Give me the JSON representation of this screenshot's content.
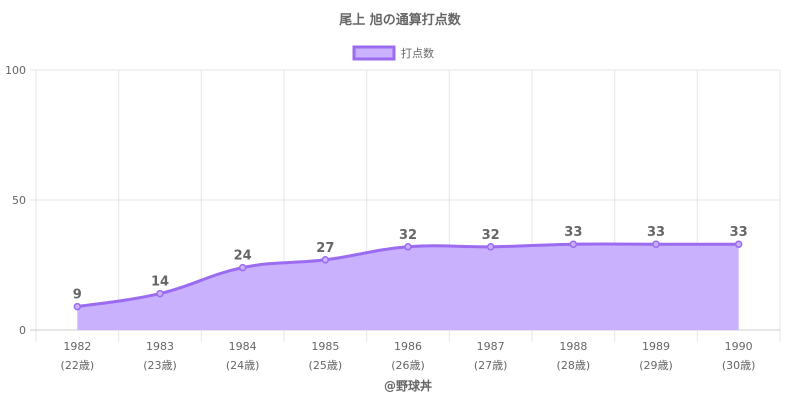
{
  "chart_data": {
    "type": "area",
    "title": "尾上 旭の通算打点数",
    "legend": {
      "label": "打点数",
      "position": "top"
    },
    "categories": [
      "1982",
      "1983",
      "1984",
      "1985",
      "1986",
      "1987",
      "1988",
      "1989",
      "1990"
    ],
    "ages": [
      "(22歳)",
      "(23歳)",
      "(24歳)",
      "(25歳)",
      "(26歳)",
      "(27歳)",
      "(28歳)",
      "(29歳)",
      "(30歳)"
    ],
    "series": [
      {
        "name": "打点数",
        "values": [
          9,
          14,
          24,
          27,
          32,
          32,
          33,
          33,
          33
        ]
      }
    ],
    "y_ticks": [
      "0",
      "50",
      "100"
    ],
    "ylim": [
      0,
      100
    ],
    "grid": true,
    "colors": {
      "line": "#9b6cf0",
      "fill": "#c9b1fd",
      "grid": "#e6e6e6",
      "axis": "#cccccc",
      "text": "#666666"
    }
  },
  "footer": {
    "credit": "@野球丼"
  }
}
